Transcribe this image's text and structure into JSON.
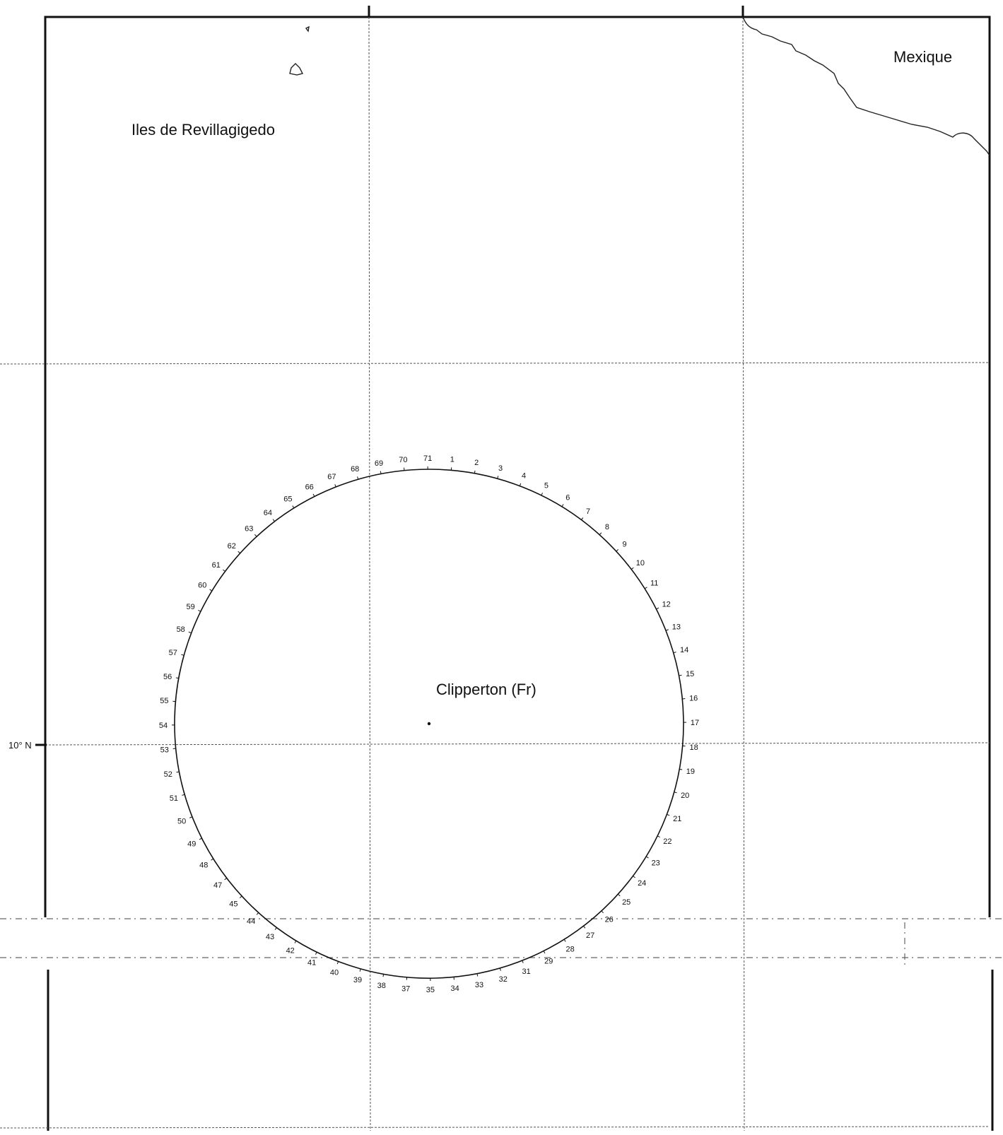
{
  "places": {
    "mexique": "Mexique",
    "revillagigedo": "Iles de Revillagigedo",
    "clipperton": "Clipperton (Fr)"
  },
  "latitude_labels": {
    "ten_north": "10° N"
  },
  "boundary_points": [
    "1",
    "2",
    "3",
    "4",
    "5",
    "6",
    "7",
    "8",
    "9",
    "10",
    "11",
    "12",
    "13",
    "14",
    "15",
    "16",
    "17",
    "18",
    "19",
    "20",
    "21",
    "22",
    "23",
    "24",
    "25",
    "26",
    "27",
    "28",
    "29",
    "31",
    "32",
    "33",
    "34",
    "35",
    "37",
    "38",
    "39",
    "40",
    "41",
    "42",
    "43",
    "44",
    "45",
    "47",
    "48",
    "49",
    "50",
    "51",
    "52",
    "53",
    "54",
    "55",
    "56",
    "57",
    "58",
    "59",
    "60",
    "61",
    "62",
    "63",
    "64",
    "65",
    "66",
    "67",
    "68",
    "69",
    "70",
    "71"
  ]
}
